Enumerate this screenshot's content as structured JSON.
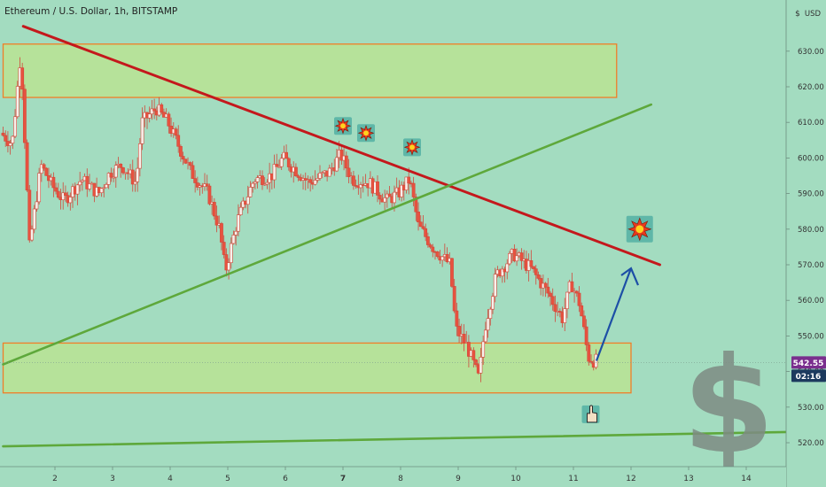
{
  "header": {
    "title": "Ethereum / U.S. Dollar, 1h, BITSTAMP",
    "currency_label": "USD"
  },
  "colors": {
    "background": "#a3dcc0",
    "candle_up": "#f7f1ec",
    "candle_down": "#e8523f",
    "wick": "#d2483a",
    "resistance_line": "#c4181c",
    "support_line": "#5ea83b",
    "zone_fill": "#b6e29a",
    "zone_border": "#f07e28",
    "arrow": "#1d4fa6",
    "price_badge": "#7a2e8e",
    "time_badge": "#1c3a5e"
  },
  "chart_data": {
    "type": "candlestick",
    "symbol": "Ethereum / U.S. Dollar",
    "interval": "1h",
    "exchange": "BITSTAMP",
    "x_ticks": [
      "2",
      "3",
      "4",
      "5",
      "6",
      "7",
      "8",
      "9",
      "10",
      "11",
      "12",
      "13",
      "14"
    ],
    "y_ticks": [
      "520.00",
      "530.00",
      "540.00",
      "550.00",
      "560.00",
      "570.00",
      "580.00",
      "590.00",
      "600.00",
      "610.00",
      "620.00",
      "630.00"
    ],
    "ylim": [
      515,
      636
    ],
    "xlim": [
      1.1,
      14.7
    ],
    "current_price": "542.55",
    "countdown": "02:16",
    "path_points": [
      [
        1.1,
        607
      ],
      [
        1.3,
        604
      ],
      [
        1.45,
        630
      ],
      [
        1.6,
        575
      ],
      [
        1.8,
        598
      ],
      [
        2.0,
        592
      ],
      [
        2.2,
        588
      ],
      [
        2.5,
        594
      ],
      [
        2.8,
        590
      ],
      [
        3.0,
        596
      ],
      [
        3.2,
        598
      ],
      [
        3.45,
        593
      ],
      [
        3.55,
        610
      ],
      [
        3.8,
        614
      ],
      [
        4.0,
        610
      ],
      [
        4.2,
        603
      ],
      [
        4.4,
        596
      ],
      [
        4.7,
        590
      ],
      [
        4.9,
        580
      ],
      [
        5.0,
        568
      ],
      [
        5.2,
        582
      ],
      [
        5.5,
        594
      ],
      [
        5.8,
        595
      ],
      [
        6.0,
        600
      ],
      [
        6.2,
        597
      ],
      [
        6.45,
        593
      ],
      [
        6.8,
        596
      ],
      [
        7.0,
        601
      ],
      [
        7.2,
        594
      ],
      [
        7.5,
        593
      ],
      [
        7.8,
        588
      ],
      [
        8.0,
        590
      ],
      [
        8.2,
        594
      ],
      [
        8.35,
        581
      ],
      [
        8.6,
        575
      ],
      [
        8.9,
        570
      ],
      [
        9.0,
        552
      ],
      [
        9.2,
        547
      ],
      [
        9.4,
        538
      ],
      [
        9.5,
        552
      ],
      [
        9.7,
        567
      ],
      [
        10.0,
        573
      ],
      [
        10.3,
        569
      ],
      [
        10.6,
        562
      ],
      [
        10.85,
        555
      ],
      [
        11.0,
        565
      ],
      [
        11.15,
        559
      ],
      [
        11.3,
        544
      ],
      [
        11.4,
        543
      ]
    ],
    "zones": [
      {
        "y_low": 617,
        "y_high": 632,
        "x_start": 1.1,
        "x_end": 11.75
      },
      {
        "y_low": 534,
        "y_high": 548,
        "x_start": 1.1,
        "x_end": 12.0
      }
    ],
    "trendlines": [
      {
        "kind": "resistance",
        "from": [
          1.45,
          637
        ],
        "to": [
          12.5,
          570
        ]
      },
      {
        "kind": "support",
        "from": [
          1.1,
          542
        ],
        "to": [
          12.35,
          615
        ]
      },
      {
        "kind": "support",
        "from": [
          1.1,
          519
        ],
        "to": [
          14.7,
          523
        ]
      }
    ],
    "arrow": {
      "from": [
        11.4,
        543
      ],
      "to": [
        12.0,
        569
      ]
    },
    "markers": [
      {
        "icon": "explosion-icon",
        "x": 7.0,
        "y": 609
      },
      {
        "icon": "explosion-icon",
        "x": 7.4,
        "y": 607
      },
      {
        "icon": "explosion-icon",
        "x": 8.2,
        "y": 603
      },
      {
        "icon": "explosion-icon",
        "x": 12.15,
        "y": 580
      },
      {
        "icon": "pointing-hand-icon",
        "x": 11.3,
        "y": 528
      }
    ],
    "dollar_symbol": "$",
    "grid": false,
    "legend": "none"
  }
}
